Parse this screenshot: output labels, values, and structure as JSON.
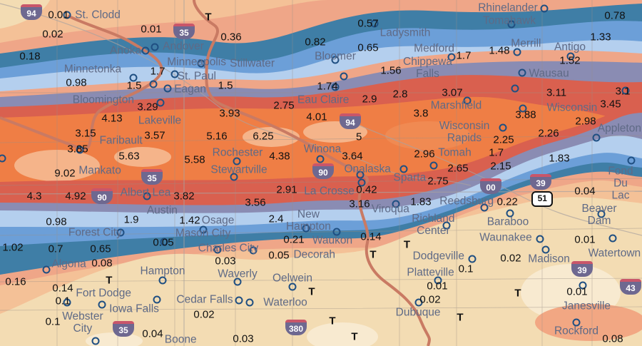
{
  "map": {
    "colors": {
      "background": "#f3dcb3",
      "peach": "#f4c197",
      "salmon": "#efa688",
      "orange": "#ef7e45",
      "light_orange": "#f5b48a",
      "red": "#d9604f",
      "slate": "#8a8cb3",
      "light_blue": "#b4cfee",
      "blue": "#6c9fd8",
      "teal": "#3f7ea6",
      "river": "#c97a63"
    },
    "trace_symbol": "T",
    "cities": [
      {
        "name": "St. Clodd"
      },
      {
        "name": "Anoka"
      },
      {
        "name": "Andover"
      },
      {
        "name": "Minneapolis"
      },
      {
        "name": "Stillwater"
      },
      {
        "name": "St. Paul"
      },
      {
        "name": "Minnetonka"
      },
      {
        "name": "Bloomington"
      },
      {
        "name": "Eagan"
      },
      {
        "name": "Lakeville"
      },
      {
        "name": "Faribault"
      },
      {
        "name": "Rochester"
      },
      {
        "name": "Stewartville"
      },
      {
        "name": "Mankato"
      },
      {
        "name": "Albert Lea"
      },
      {
        "name": "Austin"
      },
      {
        "name": "Forest City"
      },
      {
        "name": "Mason City"
      },
      {
        "name": "Osage"
      },
      {
        "name": "New\nHampton"
      },
      {
        "name": "Charles City"
      },
      {
        "name": "Algona"
      },
      {
        "name": "Hampton"
      },
      {
        "name": "Waverly"
      },
      {
        "name": "Oelwein"
      },
      {
        "name": "Cedar Falls"
      },
      {
        "name": "Waterloo"
      },
      {
        "name": "Fort Dodge"
      },
      {
        "name": "Webster\nCity"
      },
      {
        "name": "Iowa Falls"
      },
      {
        "name": "Boone"
      },
      {
        "name": "Ladysmith"
      },
      {
        "name": "Bloomer"
      },
      {
        "name": "Chippewa\nFalls"
      },
      {
        "name": "Eau Claire"
      },
      {
        "name": "Medford"
      },
      {
        "name": "Merrill"
      },
      {
        "name": "Rhinelander"
      },
      {
        "name": "Tomahawk"
      },
      {
        "name": "Antigo"
      },
      {
        "name": "Wausau"
      },
      {
        "name": "Marshfield"
      },
      {
        "name": "Wisconsin"
      },
      {
        "name": "Wisconsin\nRapids"
      },
      {
        "name": "Appleton"
      },
      {
        "name": "Fond\nDu Lac"
      },
      {
        "name": "Winona"
      },
      {
        "name": "Onalaska"
      },
      {
        "name": "Sparta"
      },
      {
        "name": "Tomah"
      },
      {
        "name": "La Crosse"
      },
      {
        "name": "Viroqua"
      },
      {
        "name": "Reedsburg"
      },
      {
        "name": "Richland\nCenter"
      },
      {
        "name": "Baraboo"
      },
      {
        "name": "Waukon"
      },
      {
        "name": "Decorah"
      },
      {
        "name": "Dodgeville"
      },
      {
        "name": "Waunakee"
      },
      {
        "name": "Madison"
      },
      {
        "name": "Beaver Dam"
      },
      {
        "name": "Watertown"
      },
      {
        "name": "Platteville"
      },
      {
        "name": "Dubuque"
      },
      {
        "name": "Janesville"
      },
      {
        "name": "Rockford"
      }
    ],
    "amounts": [
      "0.01",
      "0.02",
      "0.18",
      "0.01",
      "0.36",
      "0.82",
      "0.57",
      "0.65",
      "0.98",
      "1.7",
      "1.5",
      "1.5",
      "1.74",
      "1.56",
      "2.9",
      "2.8",
      "3.07",
      "1.7",
      "1.48",
      "1.33",
      "0.78",
      "1.52",
      "3.11",
      "3.1",
      "3.45",
      "3.29",
      "2.75",
      "4.01",
      "3.93",
      "4.13",
      "3.8",
      "3.88",
      "2.98",
      "2.26",
      "2.25",
      "1.7",
      "2.15",
      "1.83",
      "3.15",
      "3.57",
      "5.16",
      "6.25",
      "5",
      "3.85",
      "5.63",
      "5.58",
      "4.38",
      "3.64",
      "2.96",
      "2.65",
      "2.75",
      "9.02",
      "4.3",
      "4.92",
      "3.82",
      "2.91",
      "3.56",
      "3.16",
      "0.42",
      "1.83",
      "0.22",
      "0.04",
      "1.9",
      "1.42",
      "2.4",
      "0.98",
      "0.21",
      "0.14",
      "1.02",
      "0.7",
      "0.65",
      "0.05",
      "0.05",
      "0.03",
      "0.08",
      "0.16",
      "0.14",
      "0.1",
      "0.1",
      "0.02",
      "0.04",
      "0.03",
      "0.02",
      "0.1",
      "0.01",
      "0.02",
      "0.01",
      "0.01",
      "0.08"
    ],
    "highways": [
      {
        "number": "94"
      },
      {
        "number": "94"
      },
      {
        "number": "35"
      },
      {
        "number": "35"
      },
      {
        "number": "35"
      },
      {
        "number": "90"
      },
      {
        "number": "90"
      },
      {
        "number": "39"
      },
      {
        "number": "39"
      },
      {
        "number": "43"
      },
      {
        "number": "380"
      },
      {
        "number": "00"
      },
      {
        "number": "51",
        "type": "us"
      }
    ]
  }
}
